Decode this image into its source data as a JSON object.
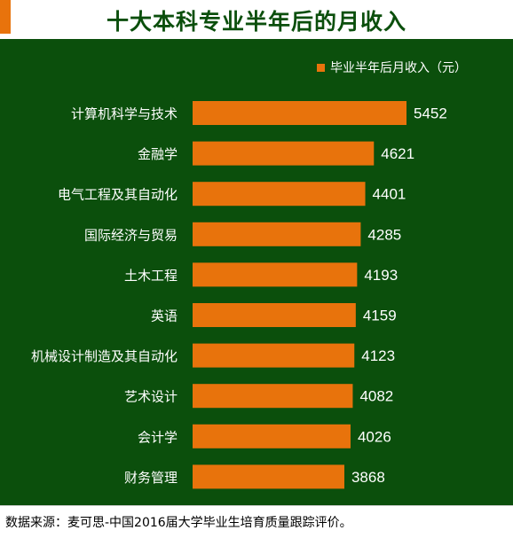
{
  "title": "十大本科专业半年后的月收入",
  "source": "数据来源：麦可思-中国2016届大学毕业生培育质量跟踪评价。",
  "colors": {
    "background": "#0b4f0c",
    "bar": "#e8730c",
    "accent": "#e8730c",
    "text": "#ffffff"
  },
  "chart_data": {
    "type": "bar",
    "orientation": "horizontal",
    "title": "十大本科专业半年后的月收入",
    "categories": [
      "计算机科学与技术",
      "金融学",
      "电气工程及其自动化",
      "国际经济与贸易",
      "土木工程",
      "英语",
      "机械设计制造及其自动化",
      "艺术设计",
      "会计学",
      "财务管理"
    ],
    "series": [
      {
        "name": "毕业半年后月收入（元）",
        "values": [
          5452,
          4621,
          4401,
          4285,
          4193,
          4159,
          4123,
          4082,
          4026,
          3868
        ]
      }
    ],
    "xlim": [
      0,
      5452
    ],
    "grid": false,
    "legend": "top-right"
  }
}
